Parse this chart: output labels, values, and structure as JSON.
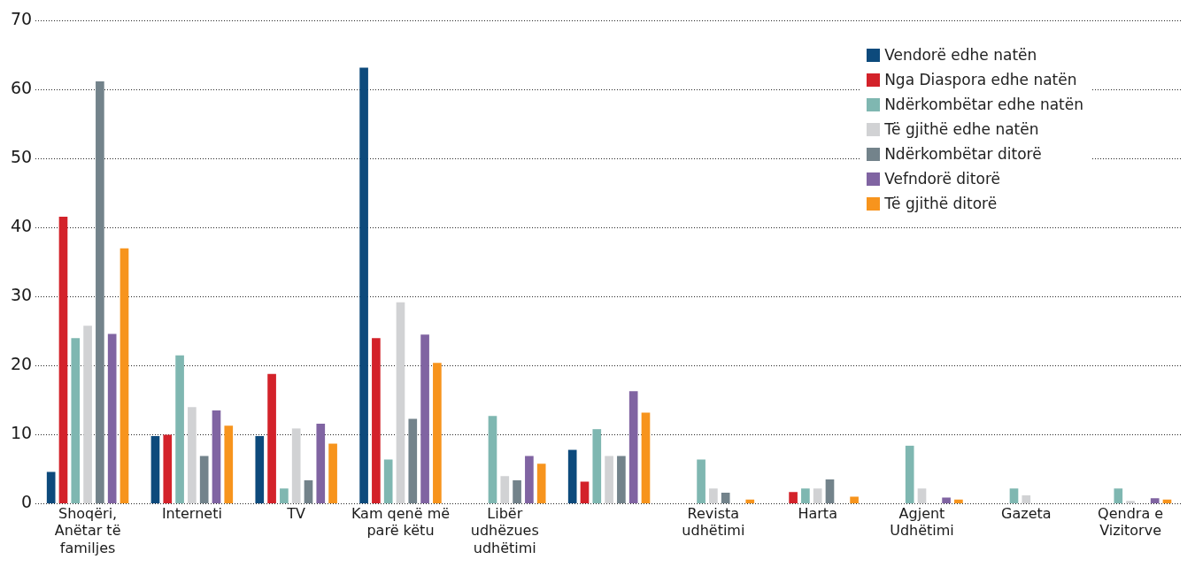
{
  "chart_data": {
    "type": "bar",
    "categories": [
      "Shoqëri, Anëtar të familjes",
      "Interneti",
      "TV",
      "Kam qenë më parë këtu",
      "Libër udhëzues udhëtimi",
      null,
      "Revista udhëtimi",
      "Harta",
      "Agjent Udhëtimi",
      "Gazeta",
      "Qendra e Vizitorve"
    ],
    "series": [
      {
        "name": "Vendorë edhe natën",
        "color": "#0d4a7c",
        "values": [
          4.6,
          9.8,
          9.8,
          63.2,
          null,
          7.8,
          null,
          null,
          null,
          null,
          null
        ]
      },
      {
        "name": "Nga Diaspora edhe natën",
        "color": "#d3222a",
        "values": [
          41.6,
          10,
          18.8,
          24,
          null,
          3.2,
          null,
          1.7,
          null,
          null,
          null
        ]
      },
      {
        "name": "Ndërkombëtar edhe natën",
        "color": "#7fb7b1",
        "values": [
          24,
          21.5,
          2.2,
          6.4,
          12.7,
          10.8,
          6.4,
          2.2,
          8.4,
          2.2,
          2.2
        ]
      },
      {
        "name": "Të gjithë edhe natën",
        "color": "#d1d2d4",
        "values": [
          25.8,
          14,
          10.9,
          29.2,
          4,
          6.9,
          2.2,
          2.2,
          2.2,
          1.2,
          0.4
        ]
      },
      {
        "name": "Ndërkombëtar ditorë",
        "color": "#73838b",
        "values": [
          61.2,
          6.9,
          3.4,
          12.3,
          3.4,
          6.9,
          1.6,
          3.5,
          null,
          null,
          null
        ]
      },
      {
        "name": "Vefndorë ditorë",
        "color": "#8064a2",
        "values": [
          24.6,
          13.5,
          11.6,
          24.5,
          6.9,
          16.3,
          null,
          null,
          0.9,
          null,
          0.8
        ]
      },
      {
        "name": "Të gjithë ditorë",
        "color": "#f7941d",
        "values": [
          37,
          11.3,
          8.7,
          20.4,
          5.8,
          13.2,
          0.6,
          1.0,
          0.6,
          null,
          0.6
        ]
      }
    ],
    "ylim": [
      0,
      70
    ],
    "yticks": [
      0,
      10,
      20,
      30,
      40,
      50,
      60,
      70
    ],
    "grid": "y",
    "legend": "top right"
  }
}
